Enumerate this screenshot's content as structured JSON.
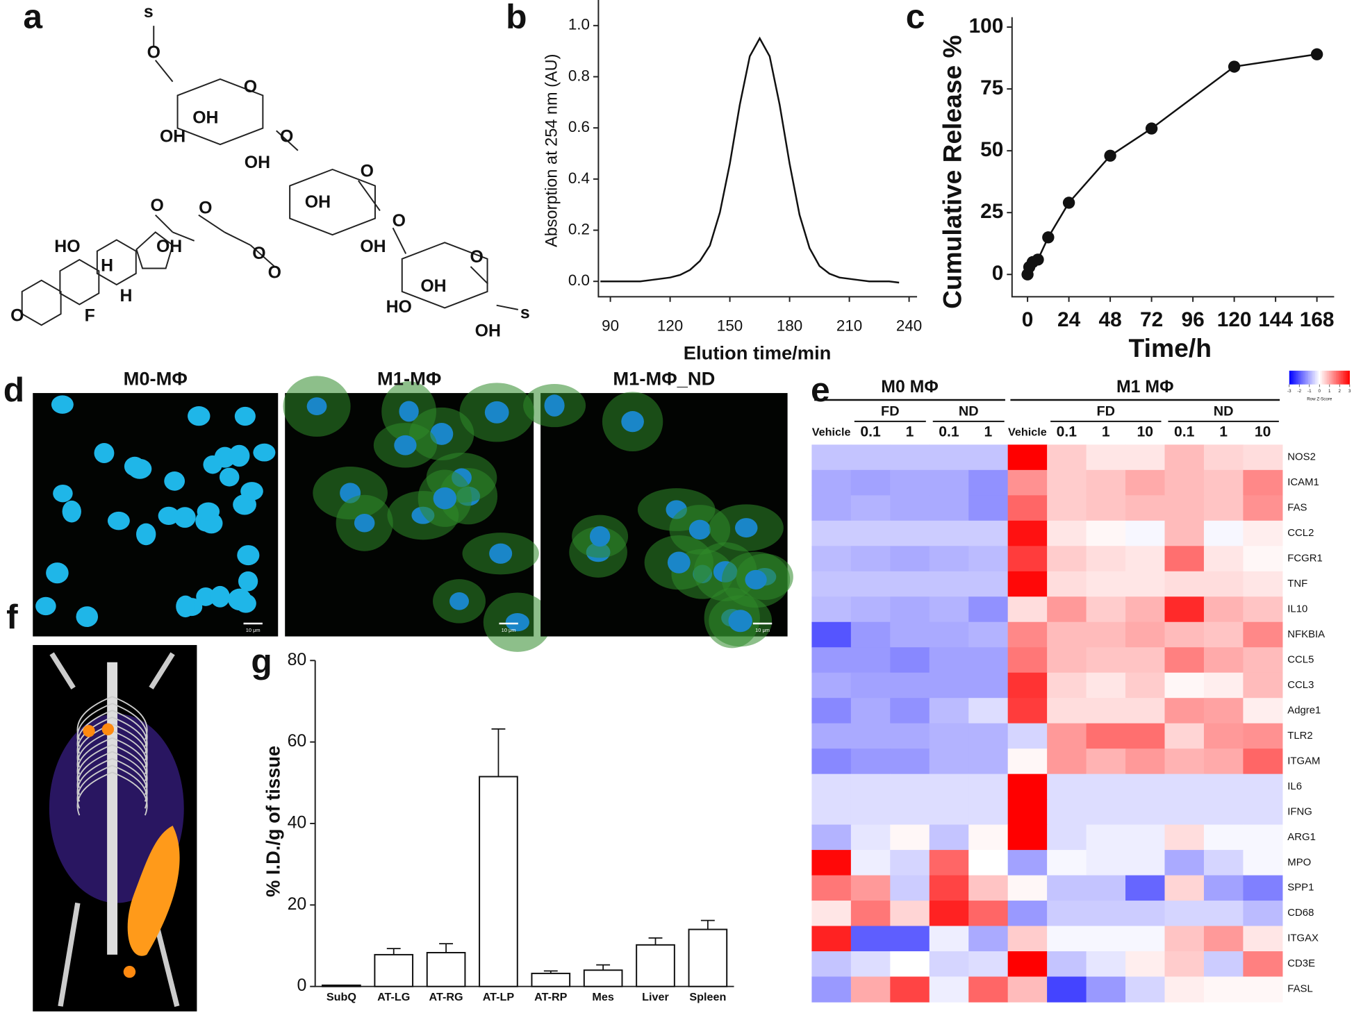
{
  "panel_labels": [
    "a",
    "b",
    "c",
    "d",
    "e",
    "f",
    "g"
  ],
  "structure": {
    "atoms": [
      "s",
      "O",
      "O",
      "OH",
      "OH",
      "OH",
      "O",
      "O",
      "OH",
      "O",
      "O",
      "O",
      "OH",
      "O",
      "O",
      "OH",
      "HO",
      "OH",
      "s",
      "HO",
      "OH",
      "O",
      "H",
      "F",
      "H",
      "O"
    ]
  },
  "microscopy": {
    "titles": [
      "M0-MΦ",
      "M1-MΦ",
      "M1-MΦ_ND"
    ],
    "scale_bar": "10 μm"
  },
  "chart_data": [
    {
      "type": "line",
      "x_label": "Elution time/min",
      "y_label": "Absorption at 254 nm (AU)",
      "color": "#111111",
      "x": [
        85,
        90,
        95,
        100,
        105,
        110,
        115,
        120,
        125,
        130,
        135,
        140,
        145,
        150,
        155,
        160,
        165,
        170,
        175,
        180,
        185,
        190,
        195,
        200,
        205,
        210,
        215,
        220,
        225,
        230,
        235
      ],
      "values": [
        0,
        0,
        0,
        0,
        0,
        0.005,
        0.01,
        0.015,
        0.025,
        0.045,
        0.08,
        0.14,
        0.27,
        0.46,
        0.69,
        0.88,
        0.95,
        0.88,
        0.69,
        0.46,
        0.26,
        0.13,
        0.06,
        0.03,
        0.015,
        0.01,
        0.005,
        0,
        0,
        0,
        -0.005
      ],
      "xlim": [
        84,
        244
      ],
      "xticks": [
        90,
        120,
        150,
        180,
        210,
        240
      ],
      "ylim": [
        -0.06,
        1.1
      ],
      "yticks": [
        {
          "value": 0,
          "label": "0.0"
        },
        0.2,
        0.4,
        0.6,
        0.8,
        {
          "value": 1,
          "label": "1.0"
        }
      ]
    },
    {
      "type": "line-marker",
      "x_label": "Time/h",
      "y_label": "Cumulative Release %",
      "color": "#111111",
      "x": [
        0,
        1,
        3,
        6,
        12,
        24,
        48,
        72,
        120,
        168
      ],
      "values": [
        0,
        3,
        5,
        6,
        15,
        29,
        48,
        59,
        84,
        89
      ],
      "xlim": [
        -9,
        178
      ],
      "xticks": [
        0,
        24,
        48,
        72,
        96,
        120,
        144,
        168
      ],
      "ylim": [
        -9,
        104
      ],
      "yticks": [
        0,
        25,
        50,
        75,
        100
      ]
    },
    {
      "type": "bar",
      "y_label": "% I.D./g of tissue",
      "color": "#ffffff",
      "categories": [
        "SubQ",
        "AT-LG",
        "AT-RG",
        "AT-LP",
        "AT-RP",
        "Mes",
        "Liver",
        "Spleen"
      ],
      "values": [
        0.3,
        7.8,
        8.3,
        51.5,
        3.2,
        4.0,
        10.2,
        14.0
      ],
      "errors": [
        0,
        1.5,
        2.2,
        11.7,
        0.6,
        1.3,
        1.7,
        2.2
      ],
      "ylim": [
        0,
        80
      ],
      "yticks": [
        0,
        20,
        40,
        60,
        80
      ]
    },
    {
      "type": "heatmap",
      "groups": [
        "M0 MΦ",
        "M1 MΦ"
      ],
      "subgroups": [
        "FD",
        "ND",
        "FD",
        "ND"
      ],
      "columns": [
        "Vehicle",
        "0.1",
        "1",
        "0.1",
        "1",
        "Vehicle",
        "0.1",
        "1",
        "10",
        "0.1",
        "1",
        "10"
      ],
      "rows": [
        "NOS2",
        "ICAM1",
        "FAS",
        "CCL2",
        "FCGR1",
        "TNF",
        "IL10",
        "NFKBIA",
        "CCL5",
        "CCL3",
        "Adgre1",
        "TLR2",
        "ITGAM",
        "IL6",
        "IFNG",
        "ARG1",
        "MPO",
        "SPP1",
        "CD68",
        "ITGAX",
        "CD3E",
        "FASL"
      ],
      "values": [
        [
          -0.7,
          -0.7,
          -0.7,
          -0.7,
          -0.7,
          3,
          0.6,
          0.3,
          0.3,
          0.8,
          0.5,
          0.4
        ],
        [
          -1,
          -1.1,
          -1,
          -1,
          -1.3,
          1.3,
          0.6,
          0.7,
          1,
          0.8,
          0.7,
          1.4
        ],
        [
          -1,
          -0.9,
          -1,
          -1,
          -1.3,
          1.8,
          0.6,
          0.7,
          0.8,
          0.8,
          0.7,
          1.3
        ],
        [
          -0.6,
          -0.6,
          -0.6,
          -0.6,
          -0.6,
          2.8,
          0.3,
          0.1,
          -0.1,
          0.8,
          -0.1,
          0.2
        ],
        [
          -0.8,
          -0.9,
          -1,
          -0.9,
          -0.8,
          2.3,
          0.6,
          0.4,
          0.3,
          1.7,
          0.3,
          0.1
        ],
        [
          -0.7,
          -0.7,
          -0.7,
          -0.7,
          -0.7,
          2.9,
          0.4,
          0.3,
          0.3,
          0.4,
          0.4,
          0.3
        ],
        [
          -0.8,
          -0.9,
          -1,
          -0.9,
          -1.3,
          0.4,
          1.2,
          0.6,
          0.9,
          2.5,
          0.9,
          0.7
        ],
        [
          -2,
          -1.2,
          -1,
          -1,
          -0.9,
          1.4,
          0.8,
          0.8,
          1,
          0.8,
          0.7,
          1.4
        ],
        [
          -1.2,
          -1.2,
          -1.4,
          -1.1,
          -1.1,
          1.6,
          0.8,
          0.7,
          0.7,
          1.5,
          1,
          0.8
        ],
        [
          -1,
          -1.1,
          -1.1,
          -1.1,
          -1.1,
          2.4,
          0.5,
          0.3,
          0.6,
          0.1,
          0.2,
          0.8
        ],
        [
          -1.4,
          -1,
          -1.3,
          -0.8,
          -0.4,
          2.3,
          0.4,
          0.4,
          0.4,
          1.2,
          1.1,
          0.2
        ],
        [
          -1,
          -1,
          -1,
          -0.9,
          -0.9,
          -0.5,
          1.2,
          1.7,
          1.7,
          0.5,
          1.2,
          1.3
        ],
        [
          -1.4,
          -1.2,
          -1.2,
          -0.9,
          -0.9,
          0.1,
          1.2,
          0.9,
          1.2,
          0.9,
          1,
          1.8
        ],
        [
          -0.4,
          -0.4,
          -0.4,
          -0.4,
          -0.4,
          3.3,
          -0.4,
          -0.4,
          -0.4,
          -0.4,
          -0.4,
          -0.4
        ],
        [
          -0.4,
          -0.4,
          -0.4,
          -0.4,
          -0.4,
          3.3,
          -0.4,
          -0.4,
          -0.4,
          -0.4,
          -0.4,
          -0.4
        ],
        [
          -0.9,
          -0.3,
          0.1,
          -0.7,
          0.1,
          3,
          -0.4,
          -0.2,
          -0.2,
          0.4,
          -0.1,
          -0.1
        ],
        [
          2.9,
          -0.2,
          -0.5,
          1.8,
          0,
          -1.1,
          -0.1,
          -0.2,
          -0.2,
          -1,
          -0.5,
          -0.1
        ],
        [
          1.6,
          1.2,
          -0.6,
          2.2,
          0.7,
          0.1,
          -0.7,
          -0.7,
          -1.8,
          0.5,
          -1.1,
          -1.5
        ],
        [
          0.3,
          1.6,
          0.5,
          2.6,
          1.8,
          -1.2,
          -0.6,
          -0.6,
          -0.6,
          -0.5,
          -0.5,
          -0.8
        ],
        [
          2.6,
          -1.9,
          -1.9,
          -0.2,
          -1,
          0.6,
          -0.1,
          -0.1,
          -0.1,
          0.7,
          1.2,
          0.3
        ],
        [
          -0.7,
          -0.4,
          0,
          -0.5,
          -0.4,
          3,
          -0.7,
          -0.3,
          0.2,
          0.6,
          -0.6,
          1.5
        ],
        [
          -1.2,
          1,
          2.2,
          -0.2,
          1.8,
          0.8,
          -2.2,
          -1.2,
          -0.5,
          0.2,
          0.1,
          0.1
        ]
      ],
      "zlim": [
        -3,
        3
      ],
      "colorbar_ticks": [
        -3,
        -2,
        -1,
        0,
        1,
        2,
        3
      ],
      "colorbar_label": "Row Z-Score"
    }
  ]
}
